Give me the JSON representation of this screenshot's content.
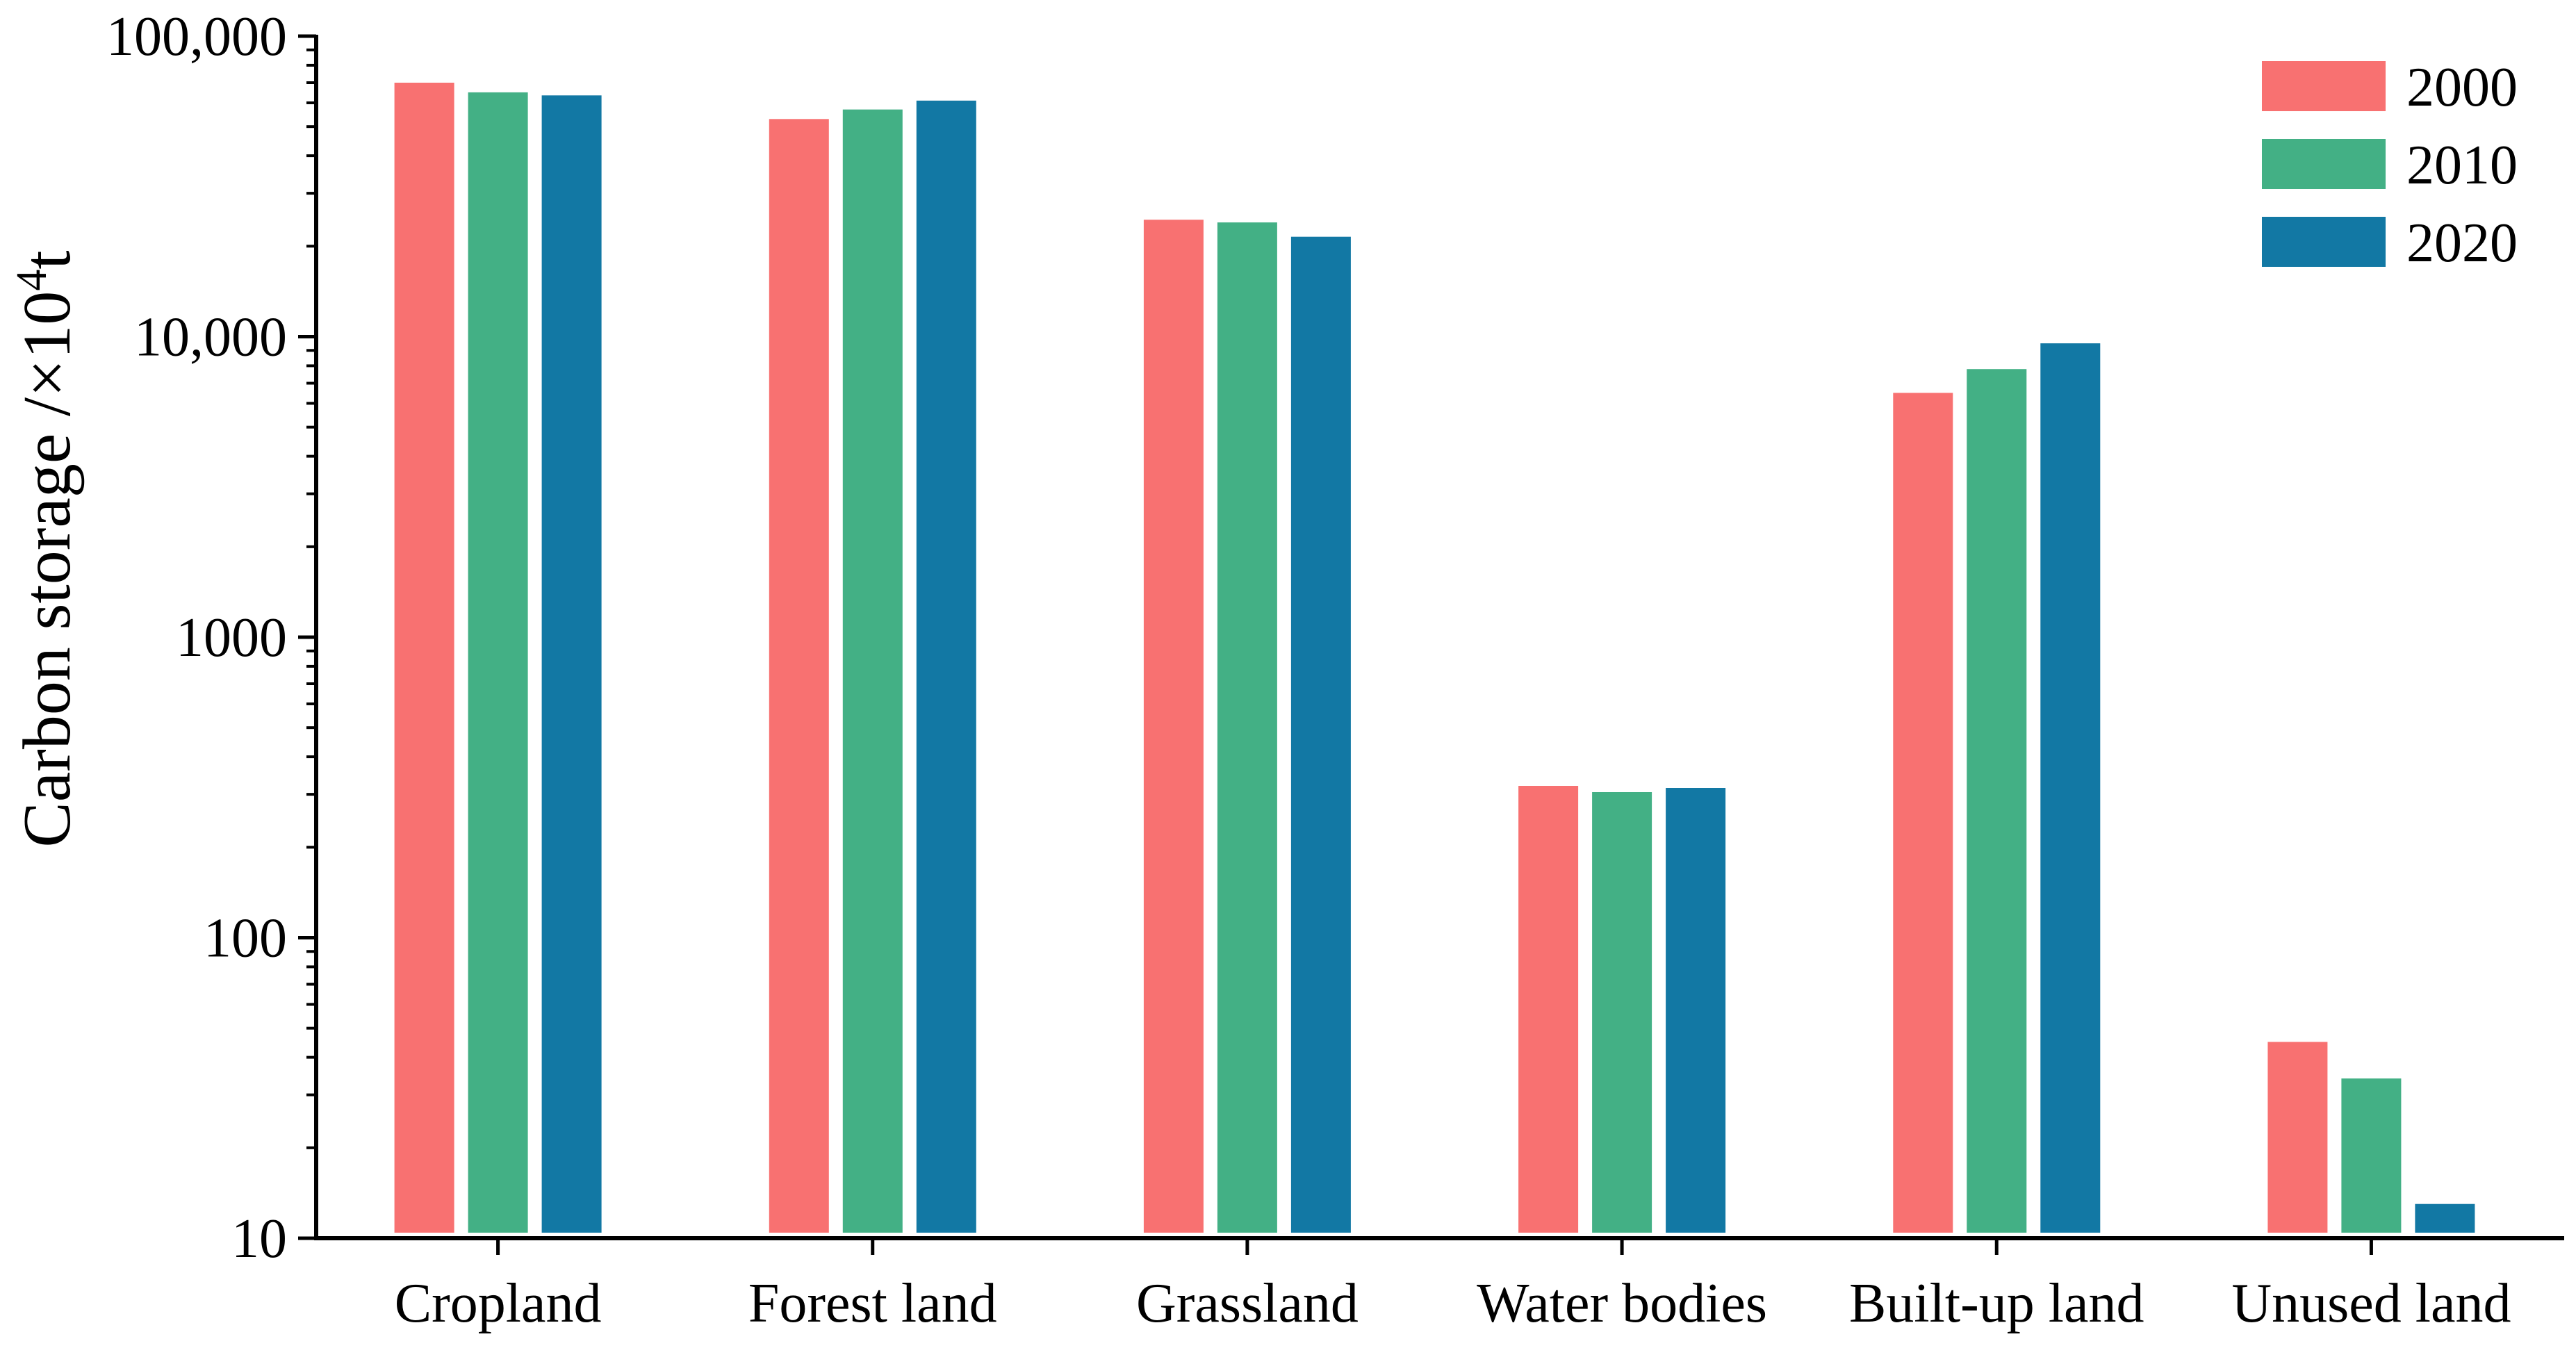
{
  "chart_data": {
    "type": "bar",
    "title": "",
    "xlabel": "",
    "ylabel": "Carbon storage /×10",
    "ylabel_superscript": "4",
    "ylabel_suffix": "t",
    "yscale": "log",
    "ylim": [
      10,
      100000
    ],
    "yticks": [
      10,
      100,
      1000,
      10000,
      100000
    ],
    "ytick_labels": [
      "10",
      "100",
      "1000",
      "10,000",
      "100,000"
    ],
    "categories": [
      "Cropland",
      "Forest land",
      "Grassland",
      "Water bodies",
      "Built-up land",
      "Unused land"
    ],
    "series": [
      {
        "name": "2000",
        "color": "#f87171",
        "values": [
          70000,
          53000,
          24500,
          320,
          6500,
          45
        ]
      },
      {
        "name": "2010",
        "color": "#43b085",
        "values": [
          65000,
          57000,
          24000,
          305,
          7800,
          34
        ]
      },
      {
        "name": "2020",
        "color": "#1278a4",
        "values": [
          63500,
          61000,
          21500,
          315,
          9500,
          13
        ]
      }
    ],
    "legend_position": "top-right",
    "grid": false
  }
}
